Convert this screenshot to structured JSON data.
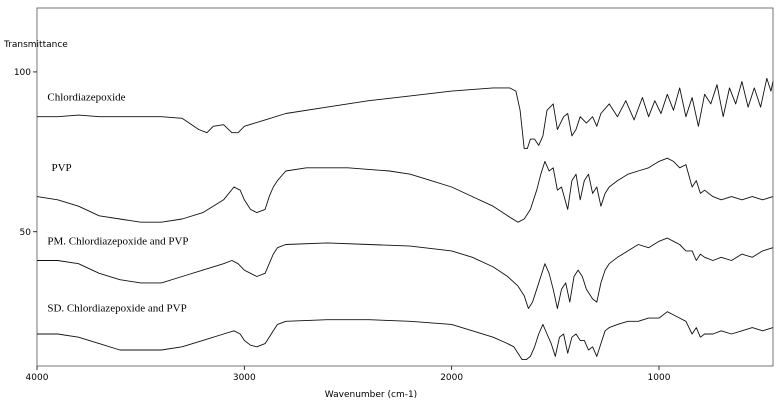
{
  "chart_data": {
    "type": "line",
    "title": "",
    "xlabel": "Wavenumber (cm-1)",
    "ylabel": "Transmittance",
    "xlim": [
      4000,
      450
    ],
    "ylim": [
      8,
      120
    ],
    "x_reversed": true,
    "grid": false,
    "legend": "labels placed above each trace",
    "xticks": [
      {
        "value": 4000,
        "label": "4000"
      },
      {
        "value": 3000,
        "label": "3000"
      },
      {
        "value": 2000,
        "label": "2000"
      },
      {
        "value": 1000,
        "label": "1000"
      }
    ],
    "yticks": [
      {
        "value": 100,
        "label": "100"
      },
      {
        "value": 50,
        "label": "50"
      }
    ],
    "series": [
      {
        "name": "Chlordiazepoxide",
        "label_at": [
          3950,
          91
        ],
        "points": [
          [
            4000,
            86
          ],
          [
            3900,
            86
          ],
          [
            3800,
            86.5
          ],
          [
            3700,
            86
          ],
          [
            3600,
            86
          ],
          [
            3500,
            86
          ],
          [
            3400,
            86
          ],
          [
            3300,
            85.5
          ],
          [
            3220,
            82
          ],
          [
            3180,
            81
          ],
          [
            3150,
            83
          ],
          [
            3100,
            83.5
          ],
          [
            3060,
            81
          ],
          [
            3030,
            81
          ],
          [
            3000,
            83
          ],
          [
            2900,
            85
          ],
          [
            2800,
            87
          ],
          [
            2600,
            89
          ],
          [
            2400,
            91
          ],
          [
            2200,
            92.5
          ],
          [
            2000,
            94
          ],
          [
            1800,
            95
          ],
          [
            1720,
            95
          ],
          [
            1690,
            94
          ],
          [
            1670,
            88
          ],
          [
            1650,
            76
          ],
          [
            1635,
            76
          ],
          [
            1620,
            79
          ],
          [
            1600,
            79
          ],
          [
            1580,
            77
          ],
          [
            1560,
            80
          ],
          [
            1540,
            88
          ],
          [
            1510,
            90
          ],
          [
            1490,
            82
          ],
          [
            1460,
            86
          ],
          [
            1440,
            87
          ],
          [
            1420,
            80
          ],
          [
            1400,
            82
          ],
          [
            1380,
            86
          ],
          [
            1350,
            84
          ],
          [
            1320,
            86
          ],
          [
            1300,
            83
          ],
          [
            1280,
            87
          ],
          [
            1240,
            90
          ],
          [
            1200,
            86
          ],
          [
            1160,
            91
          ],
          [
            1120,
            85
          ],
          [
            1080,
            92
          ],
          [
            1050,
            86
          ],
          [
            1020,
            91
          ],
          [
            990,
            87
          ],
          [
            960,
            93
          ],
          [
            930,
            88
          ],
          [
            900,
            95
          ],
          [
            870,
            86
          ],
          [
            840,
            92
          ],
          [
            810,
            83
          ],
          [
            780,
            93
          ],
          [
            750,
            90
          ],
          [
            720,
            96
          ],
          [
            690,
            86
          ],
          [
            660,
            95
          ],
          [
            630,
            90
          ],
          [
            600,
            97
          ],
          [
            570,
            89
          ],
          [
            540,
            95
          ],
          [
            510,
            89
          ],
          [
            480,
            98
          ],
          [
            460,
            94
          ],
          [
            450,
            97
          ]
        ]
      },
      {
        "name": "PVP",
        "label_at": [
          3930,
          69
        ],
        "points": [
          [
            4000,
            61
          ],
          [
            3900,
            60
          ],
          [
            3800,
            58
          ],
          [
            3700,
            55
          ],
          [
            3600,
            54
          ],
          [
            3500,
            53
          ],
          [
            3400,
            53
          ],
          [
            3300,
            54
          ],
          [
            3200,
            56
          ],
          [
            3100,
            60
          ],
          [
            3050,
            64
          ],
          [
            3020,
            63
          ],
          [
            3000,
            60
          ],
          [
            2970,
            57
          ],
          [
            2940,
            56
          ],
          [
            2900,
            57
          ],
          [
            2880,
            61
          ],
          [
            2860,
            64
          ],
          [
            2840,
            66
          ],
          [
            2800,
            69
          ],
          [
            2700,
            70
          ],
          [
            2500,
            70
          ],
          [
            2400,
            69.5
          ],
          [
            2300,
            69
          ],
          [
            2200,
            68
          ],
          [
            2100,
            66
          ],
          [
            2000,
            64
          ],
          [
            1900,
            61
          ],
          [
            1800,
            58
          ],
          [
            1730,
            55
          ],
          [
            1680,
            53
          ],
          [
            1650,
            54
          ],
          [
            1620,
            57
          ],
          [
            1590,
            63
          ],
          [
            1570,
            68
          ],
          [
            1550,
            72
          ],
          [
            1530,
            69
          ],
          [
            1510,
            70
          ],
          [
            1490,
            63
          ],
          [
            1470,
            64
          ],
          [
            1440,
            57
          ],
          [
            1420,
            66
          ],
          [
            1400,
            68
          ],
          [
            1380,
            60
          ],
          [
            1360,
            66
          ],
          [
            1340,
            68
          ],
          [
            1320,
            62
          ],
          [
            1300,
            64
          ],
          [
            1280,
            58
          ],
          [
            1260,
            62
          ],
          [
            1240,
            64
          ],
          [
            1200,
            66
          ],
          [
            1150,
            68
          ],
          [
            1100,
            69
          ],
          [
            1050,
            70
          ],
          [
            1000,
            72
          ],
          [
            960,
            73
          ],
          [
            930,
            72
          ],
          [
            900,
            70
          ],
          [
            870,
            71
          ],
          [
            840,
            64
          ],
          [
            820,
            66
          ],
          [
            800,
            62
          ],
          [
            780,
            63
          ],
          [
            740,
            61
          ],
          [
            700,
            60
          ],
          [
            650,
            61
          ],
          [
            600,
            60
          ],
          [
            550,
            61
          ],
          [
            500,
            60
          ],
          [
            450,
            61
          ]
        ]
      },
      {
        "name": "PM. Chlordiazepoxide and PVP",
        "label_at": [
          3950,
          46
        ],
        "points": [
          [
            4000,
            41
          ],
          [
            3900,
            41
          ],
          [
            3800,
            40
          ],
          [
            3700,
            37
          ],
          [
            3600,
            35
          ],
          [
            3500,
            34
          ],
          [
            3400,
            34
          ],
          [
            3300,
            36
          ],
          [
            3200,
            38
          ],
          [
            3100,
            40
          ],
          [
            3060,
            41
          ],
          [
            3030,
            40
          ],
          [
            3000,
            38
          ],
          [
            2970,
            37
          ],
          [
            2940,
            36
          ],
          [
            2900,
            37
          ],
          [
            2880,
            40
          ],
          [
            2860,
            43
          ],
          [
            2840,
            45
          ],
          [
            2800,
            46
          ],
          [
            2600,
            46.5
          ],
          [
            2400,
            46
          ],
          [
            2200,
            45.5
          ],
          [
            2000,
            44
          ],
          [
            1900,
            42
          ],
          [
            1800,
            39
          ],
          [
            1730,
            36
          ],
          [
            1680,
            33
          ],
          [
            1650,
            30
          ],
          [
            1630,
            26
          ],
          [
            1610,
            28
          ],
          [
            1590,
            32
          ],
          [
            1570,
            36
          ],
          [
            1550,
            40
          ],
          [
            1530,
            37
          ],
          [
            1510,
            32
          ],
          [
            1490,
            26
          ],
          [
            1470,
            32
          ],
          [
            1450,
            34
          ],
          [
            1430,
            28
          ],
          [
            1410,
            36
          ],
          [
            1390,
            38
          ],
          [
            1370,
            36
          ],
          [
            1350,
            32
          ],
          [
            1320,
            29
          ],
          [
            1300,
            28
          ],
          [
            1280,
            34
          ],
          [
            1260,
            38
          ],
          [
            1240,
            40
          ],
          [
            1200,
            42
          ],
          [
            1150,
            44
          ],
          [
            1100,
            46
          ],
          [
            1050,
            45
          ],
          [
            1000,
            47
          ],
          [
            960,
            48
          ],
          [
            930,
            47
          ],
          [
            900,
            46
          ],
          [
            870,
            44
          ],
          [
            840,
            44
          ],
          [
            820,
            41
          ],
          [
            800,
            43
          ],
          [
            780,
            42
          ],
          [
            740,
            41
          ],
          [
            700,
            42
          ],
          [
            650,
            41
          ],
          [
            600,
            43
          ],
          [
            550,
            42
          ],
          [
            500,
            44
          ],
          [
            450,
            45
          ]
        ]
      },
      {
        "name": "SD. Chlordiazepoxide and PVP",
        "label_at": [
          3950,
          25
        ],
        "points": [
          [
            4000,
            18
          ],
          [
            3900,
            18
          ],
          [
            3800,
            17
          ],
          [
            3700,
            15
          ],
          [
            3600,
            13
          ],
          [
            3500,
            13
          ],
          [
            3400,
            13
          ],
          [
            3300,
            14
          ],
          [
            3200,
            16
          ],
          [
            3100,
            18
          ],
          [
            3050,
            19
          ],
          [
            3020,
            18
          ],
          [
            3000,
            16
          ],
          [
            2970,
            14.5
          ],
          [
            2940,
            14
          ],
          [
            2900,
            15
          ],
          [
            2880,
            17
          ],
          [
            2860,
            19
          ],
          [
            2840,
            21
          ],
          [
            2800,
            22
          ],
          [
            2600,
            22.5
          ],
          [
            2400,
            22.5
          ],
          [
            2200,
            22
          ],
          [
            2000,
            21
          ],
          [
            1900,
            19
          ],
          [
            1800,
            17
          ],
          [
            1730,
            15
          ],
          [
            1700,
            14
          ],
          [
            1680,
            12
          ],
          [
            1660,
            10
          ],
          [
            1640,
            10
          ],
          [
            1620,
            11
          ],
          [
            1600,
            14
          ],
          [
            1580,
            18
          ],
          [
            1560,
            21
          ],
          [
            1540,
            18
          ],
          [
            1520,
            15
          ],
          [
            1500,
            11
          ],
          [
            1480,
            17
          ],
          [
            1460,
            18
          ],
          [
            1440,
            12
          ],
          [
            1420,
            17
          ],
          [
            1400,
            18
          ],
          [
            1380,
            16
          ],
          [
            1360,
            16
          ],
          [
            1340,
            13
          ],
          [
            1320,
            14
          ],
          [
            1300,
            11
          ],
          [
            1280,
            15
          ],
          [
            1260,
            19
          ],
          [
            1240,
            20
          ],
          [
            1200,
            21
          ],
          [
            1150,
            22
          ],
          [
            1100,
            22
          ],
          [
            1050,
            23
          ],
          [
            1000,
            23
          ],
          [
            960,
            25
          ],
          [
            930,
            24
          ],
          [
            900,
            23
          ],
          [
            870,
            22
          ],
          [
            840,
            18
          ],
          [
            820,
            20
          ],
          [
            800,
            17
          ],
          [
            780,
            18
          ],
          [
            740,
            18
          ],
          [
            700,
            19
          ],
          [
            650,
            18
          ],
          [
            600,
            19
          ],
          [
            550,
            20
          ],
          [
            500,
            19
          ],
          [
            450,
            20
          ]
        ]
      }
    ]
  }
}
